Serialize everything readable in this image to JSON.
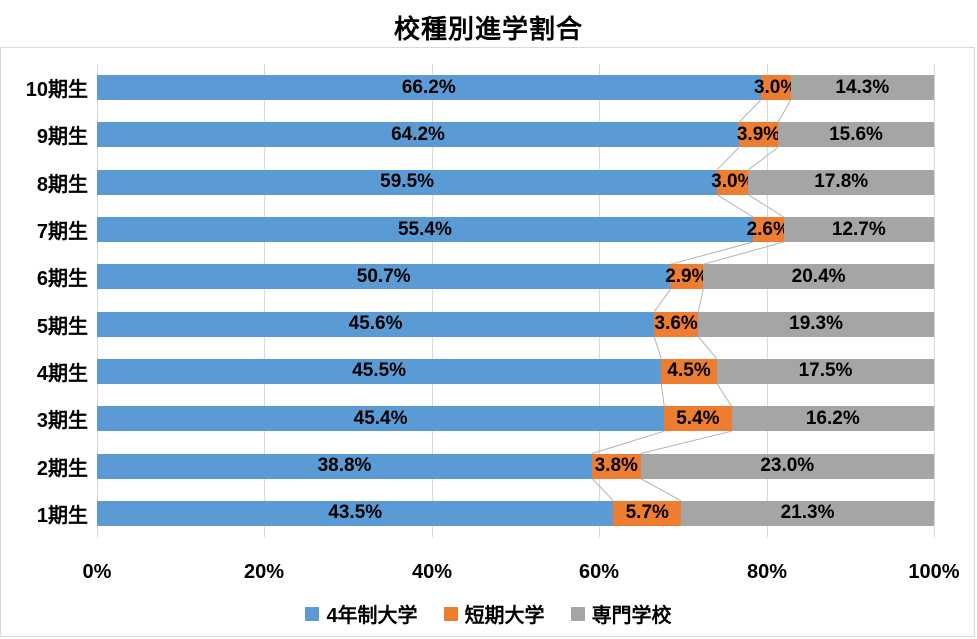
{
  "title": "校種別進学割合",
  "chart_data": {
    "type": "bar",
    "orientation": "horizontal",
    "stacked": true,
    "normalized_to_100_percent": true,
    "categories": [
      "10期生",
      "9期生",
      "8期生",
      "7期生",
      "6期生",
      "5期生",
      "4期生",
      "3期生",
      "2期生",
      "1期生"
    ],
    "series": [
      {
        "name": "4年制大学",
        "color": "#5B9BD5",
        "values": [
          66.2,
          64.2,
          59.5,
          55.4,
          50.7,
          45.6,
          45.5,
          45.4,
          38.8,
          43.5
        ]
      },
      {
        "name": "短期大学",
        "color": "#ED7D31",
        "values": [
          3.0,
          3.9,
          3.0,
          2.6,
          2.9,
          3.6,
          4.5,
          5.4,
          3.8,
          5.7
        ]
      },
      {
        "name": "専門学校",
        "color": "#A5A5A5",
        "values": [
          14.3,
          15.6,
          17.8,
          12.7,
          20.4,
          19.3,
          17.5,
          16.2,
          23.0,
          21.3
        ]
      }
    ],
    "x_ticks": [
      "0%",
      "20%",
      "40%",
      "60%",
      "80%",
      "100%"
    ],
    "xlim": [
      0,
      100
    ],
    "grid": true,
    "legend_position": "bottom",
    "data_label_format": "0.0%"
  },
  "style": {
    "background": "#FFFFFF",
    "gridline_color": "#D9D9D9",
    "border_color": "#D9D9D9",
    "connector_line_color": "#B3B3B3",
    "label_color": "#000000"
  }
}
